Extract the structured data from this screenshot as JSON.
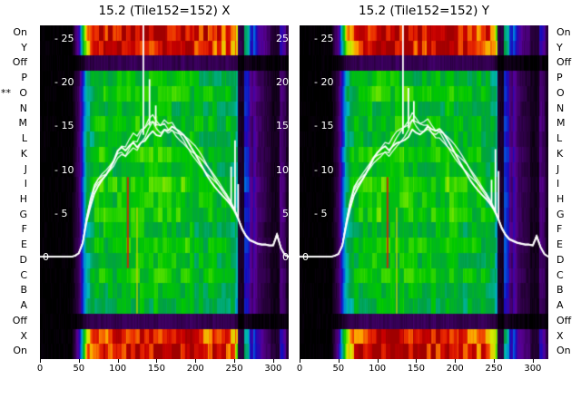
{
  "figure": {
    "bg": "#ffffff",
    "star_marker": "**",
    "star_row_index": 4,
    "between_tick_labels": [
      "25",
      "20",
      "15",
      "10",
      "5",
      "0"
    ]
  },
  "chart_data": {
    "type": "heatmap",
    "subtype": "heatmap-with-line-overlay",
    "grid": false,
    "legend": null,
    "x_range": [
      0,
      320
    ],
    "x_ticks": [
      0,
      50,
      100,
      150,
      200,
      250,
      300
    ],
    "value_axis": {
      "ticks": [
        25,
        20,
        15,
        10,
        5,
        0
      ],
      "tick_labels": [
        "- 25",
        "- 20",
        "- 15",
        "- 10",
        "- 5",
        "0"
      ],
      "range": [
        0,
        26.6
      ]
    },
    "rows": [
      "On",
      "Y",
      "Off",
      "P",
      "O",
      "N",
      "M",
      "L",
      "K",
      "J",
      "I",
      "H",
      "G",
      "F",
      "E",
      "D",
      "C",
      "B",
      "A",
      "Off",
      "X",
      "On"
    ],
    "row_amps": [
      0.97,
      0.93,
      0.07,
      0.5,
      0.54,
      0.49,
      0.53,
      0.5,
      0.55,
      0.51,
      0.57,
      0.53,
      0.55,
      0.5,
      0.54,
      0.51,
      0.53,
      0.49,
      0.47,
      0.07,
      0.92,
      0.96
    ],
    "profile_x_step": 10,
    "profile": [
      0,
      0,
      0,
      0,
      0,
      0.15,
      0.75,
      0.92,
      0.96,
      0.99,
      1,
      1,
      1,
      1,
      1,
      1,
      1,
      0.99,
      0.99,
      0.98,
      0.97,
      0.96,
      0.95,
      0.93,
      0.9,
      0.82,
      0.55,
      0.4,
      0.16,
      0.1,
      0.08,
      0.1,
      0.04,
      0
    ],
    "stripes": [
      {
        "x0": 254,
        "x1": 262,
        "f": 0.1
      },
      {
        "x0": 262,
        "x1": 269,
        "f": 0.85
      },
      {
        "x0": 269,
        "x1": 274,
        "f": 0.55
      },
      {
        "x0": 296,
        "x1": 308,
        "f": 0.55
      },
      {
        "x0": 308,
        "x1": 316,
        "f": 1.9
      }
    ],
    "line_marks": [
      {
        "x": 112,
        "w": 2,
        "row0": 10,
        "row1": 16,
        "color": "#cc2a00"
      },
      {
        "x": 124,
        "w": 1.6,
        "row0": 12,
        "row1": 19,
        "color": "#b8cc00"
      }
    ],
    "overlay": {
      "x_step": 5,
      "color": "#ffffff",
      "ensemble": {
        "count": 4,
        "amp": 0.05,
        "phases": [
          0.0,
          1.6,
          3.2,
          4.8
        ],
        "offset": 0.18
      }
    },
    "colormap": [
      [
        0.0,
        0,
        0,
        0
      ],
      [
        0.05,
        40,
        0,
        60
      ],
      [
        0.12,
        90,
        0,
        150
      ],
      [
        0.19,
        20,
        10,
        190
      ],
      [
        0.27,
        0,
        110,
        230
      ],
      [
        0.35,
        0,
        185,
        185
      ],
      [
        0.44,
        0,
        160,
        70
      ],
      [
        0.53,
        0,
        200,
        0
      ],
      [
        0.62,
        90,
        225,
        0
      ],
      [
        0.7,
        215,
        235,
        0
      ],
      [
        0.78,
        255,
        160,
        0
      ],
      [
        0.86,
        235,
        45,
        0
      ],
      [
        0.93,
        200,
        0,
        0
      ],
      [
        1.0,
        160,
        0,
        0
      ]
    ],
    "panels": [
      {
        "title": "15.2 (Tile152=152) X",
        "y": [
          0.2,
          0.2,
          0.2,
          0.2,
          0.2,
          0.2,
          0.2,
          0.2,
          0.2,
          0.3,
          0.6,
          1.8,
          4.5,
          6.5,
          8.0,
          8.8,
          9.3,
          9.7,
          10.3,
          11.0,
          12.0,
          12.4,
          12.1,
          12.8,
          13.4,
          13.1,
          13.9,
          14.3,
          15.1,
          15.6,
          15.0,
          14.7,
          15.2,
          14.8,
          15.0,
          14.5,
          14.1,
          13.7,
          13.1,
          12.5,
          12.0,
          11.4,
          10.8,
          10.1,
          9.5,
          8.9,
          8.3,
          7.7,
          7.1,
          6.4,
          5.6,
          4.6,
          3.4,
          2.6,
          2.1,
          1.9,
          1.7,
          1.6,
          1.6,
          1.5,
          1.5,
          2.8,
          1.2,
          0.4,
          0.2,
          0.2,
          0.2
        ],
        "spikes": [
          {
            "x": 133,
            "v": 27.5
          },
          {
            "x": 141,
            "v": 20.5
          },
          {
            "x": 149,
            "v": 17.5
          },
          {
            "x": 246,
            "v": 10.5
          },
          {
            "x": 251,
            "v": 13.5
          },
          {
            "x": 255,
            "v": 8.5
          }
        ]
      },
      {
        "title": "15.2 (Tile152=152) Y",
        "y": [
          0.2,
          0.2,
          0.2,
          0.2,
          0.2,
          0.2,
          0.2,
          0.2,
          0.2,
          0.3,
          0.5,
          1.5,
          4.0,
          6.2,
          7.8,
          8.6,
          9.2,
          9.8,
          10.5,
          11.3,
          11.8,
          12.2,
          12.6,
          12.3,
          13.0,
          13.6,
          14.0,
          14.4,
          14.9,
          15.8,
          15.3,
          14.9,
          15.0,
          15.3,
          14.7,
          14.3,
          14.4,
          13.9,
          13.3,
          12.7,
          12.1,
          11.5,
          10.9,
          10.3,
          9.6,
          9.0,
          8.4,
          7.8,
          7.2,
          6.5,
          5.7,
          4.7,
          3.5,
          2.7,
          2.2,
          2.0,
          1.8,
          1.7,
          1.6,
          1.6,
          1.5,
          2.6,
          1.3,
          0.5,
          0.2,
          0.2,
          0.2
        ],
        "spikes": [
          {
            "x": 133,
            "v": 27.5
          },
          {
            "x": 140,
            "v": 19.5
          },
          {
            "x": 147,
            "v": 18.0
          },
          {
            "x": 247,
            "v": 9.0
          },
          {
            "x": 252,
            "v": 12.5
          },
          {
            "x": 256,
            "v": 10.0
          }
        ]
      }
    ]
  }
}
